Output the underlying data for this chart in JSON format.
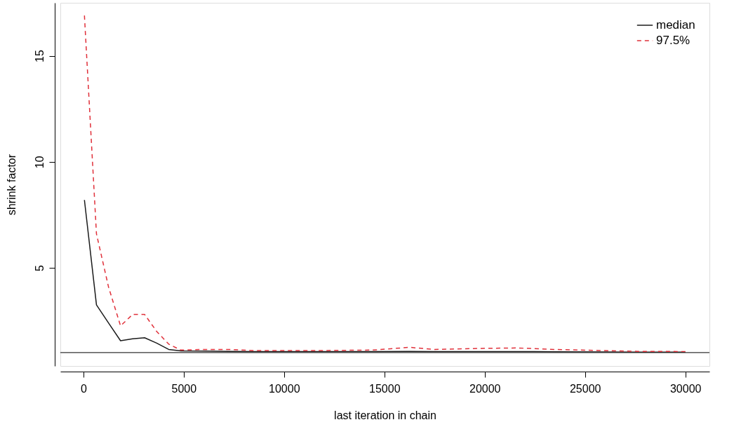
{
  "chart_data": {
    "type": "line",
    "xlabel": "last iteration in chain",
    "ylabel": "shrink factor",
    "x": [
      50,
      650,
      1250,
      1850,
      2450,
      3050,
      3650,
      4250,
      4850,
      6050,
      7250,
      8450,
      9650,
      12050,
      14450,
      16250,
      17450,
      19850,
      21650,
      23450,
      25850,
      27650,
      30000
    ],
    "series": [
      {
        "name": "median",
        "color": "#1a1a1a",
        "line_style": "solid",
        "values": [
          8.2,
          3.25,
          2.4,
          1.56,
          1.65,
          1.7,
          1.45,
          1.15,
          1.08,
          1.07,
          1.06,
          1.05,
          1.05,
          1.05,
          1.05,
          1.06,
          1.05,
          1.05,
          1.05,
          1.04,
          1.03,
          1.02,
          1.02
        ]
      },
      {
        "name": "97.5%",
        "color": "#e0303a",
        "line_style": "dashed",
        "values": [
          16.9,
          6.6,
          4.1,
          2.26,
          2.8,
          2.8,
          2.0,
          1.4,
          1.12,
          1.15,
          1.15,
          1.1,
          1.1,
          1.1,
          1.12,
          1.25,
          1.15,
          1.2,
          1.22,
          1.15,
          1.1,
          1.06,
          1.05
        ]
      }
    ],
    "xlim": [
      -1150,
      31200
    ],
    "ylim": [
      0.37,
      17.5
    ],
    "xticks": [
      0,
      5000,
      10000,
      15000,
      20000,
      25000,
      30000
    ],
    "yticks": [
      5,
      10,
      15
    ],
    "ref_lines": [
      {
        "axis": "y",
        "value": 1,
        "color": "#333333"
      }
    ],
    "grid": false,
    "legend": "top right",
    "marker": "none"
  }
}
